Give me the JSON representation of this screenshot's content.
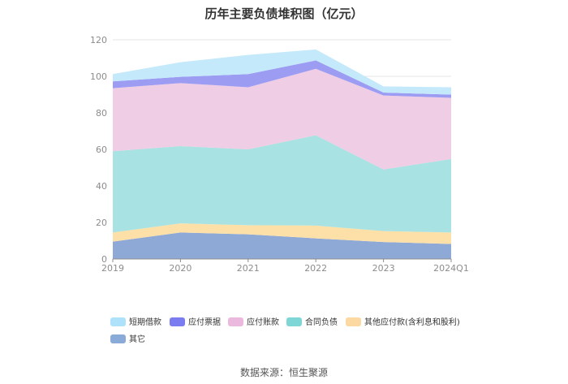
{
  "chart_data": {
    "type": "area",
    "stacked": true,
    "title": "历年主要负债堆积图（亿元）",
    "categories": [
      "2019",
      "2020",
      "2021",
      "2022",
      "2023",
      "2024Q1"
    ],
    "ylim": [
      0,
      120
    ],
    "yticks": [
      0,
      20,
      40,
      60,
      80,
      100,
      120
    ],
    "grid": true,
    "legend_position": "bottom",
    "series": [
      {
        "name": "其它",
        "color": "#8fa9d6",
        "values": [
          9.5,
          14.5,
          13.5,
          11.3,
          9.3,
          8.2
        ]
      },
      {
        "name": "其他应付款(含利息和股利)",
        "color": "#fde0a8",
        "values": [
          5.0,
          5.0,
          5.0,
          7.0,
          6.0,
          6.3
        ]
      },
      {
        "name": "合同负债",
        "color": "#a8e2e2",
        "values": [
          44.5,
          42.3,
          41.5,
          49.4,
          33.7,
          40.2
        ]
      },
      {
        "name": "应付账款",
        "color": "#efcde4",
        "values": [
          34.5,
          34.5,
          34.0,
          36.4,
          40.5,
          33.5
        ]
      },
      {
        "name": "应付票据",
        "color": "#9c9cf3",
        "values": [
          3.7,
          3.4,
          7.2,
          4.6,
          1.6,
          1.8
        ]
      },
      {
        "name": "短期借款",
        "color": "#c4e9fb",
        "values": [
          4.0,
          8.0,
          10.5,
          6.0,
          3.4,
          4.0
        ]
      }
    ],
    "legend_colors": [
      "#aee2fa",
      "#7b7cf0",
      "#ebb9dd",
      "#7fd6d6",
      "#fcd9a0",
      "#8aaad8"
    ]
  },
  "legend": [
    {
      "name": "短期借款"
    },
    {
      "name": "应付票据"
    },
    {
      "name": "应付账款"
    },
    {
      "name": "合同负债"
    },
    {
      "name": "其他应付款(含利息和股利)"
    },
    {
      "name": "其它"
    }
  ],
  "source": "数据来源：恒生聚源"
}
